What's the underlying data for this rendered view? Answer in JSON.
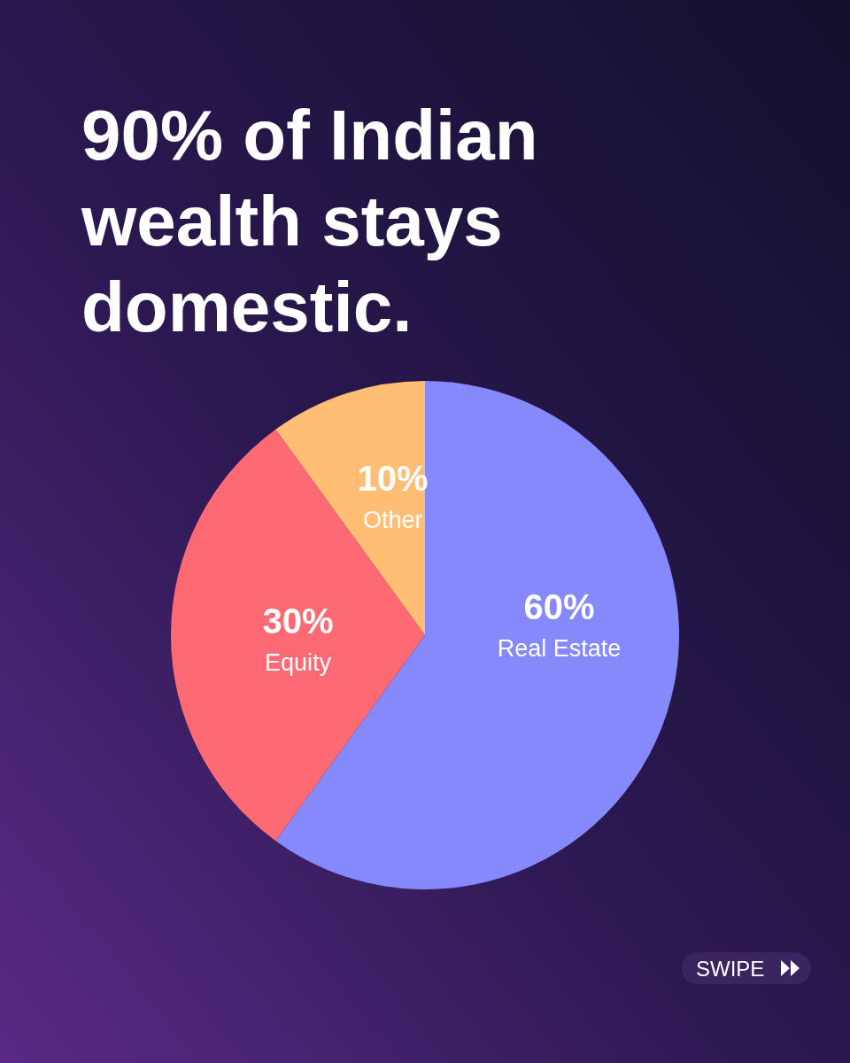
{
  "chart_data": {
    "type": "pie",
    "title": "90% of Indian wealth stays domestic.",
    "categories": [
      "Real Estate",
      "Equity",
      "Other"
    ],
    "values": [
      60,
      30,
      10
    ],
    "colors": [
      "#8589fc",
      "#fe6a74",
      "#ffbe73"
    ],
    "value_labels": [
      "60%",
      "30%",
      "10%"
    ],
    "annotations": [
      "SWIPE"
    ]
  }
}
